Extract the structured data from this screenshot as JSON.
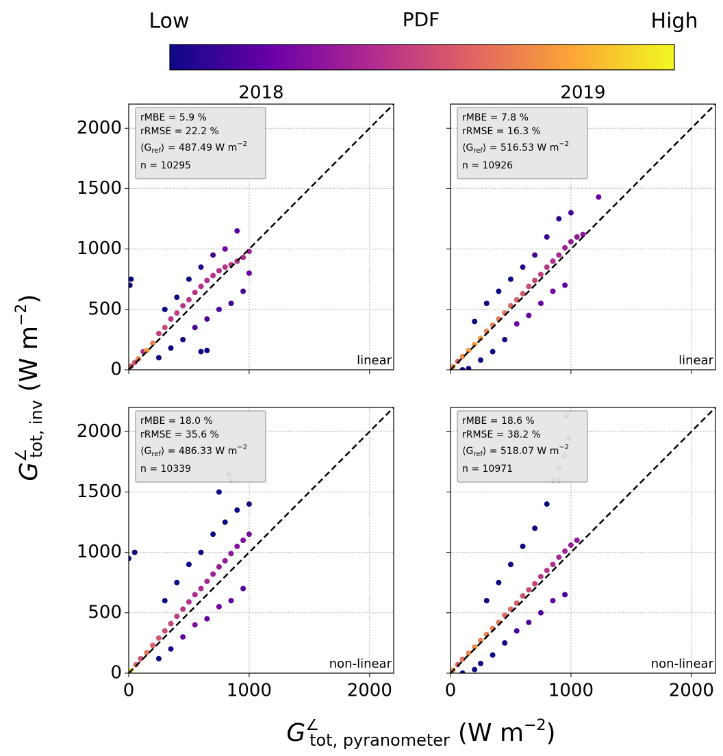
{
  "colorbar": {
    "title": "PDF",
    "low": "Low",
    "high": "High",
    "colors": [
      "#0d0887",
      "#6a00a8",
      "#b12a90",
      "#e16462",
      "#fca636",
      "#f0f921"
    ]
  },
  "ylabel": {
    "symbol": "G",
    "sup": "∠",
    "sub": "tot, inv",
    "unit": "(W m",
    "unit_sup": "−2",
    "unit_end": ")"
  },
  "xlabel": {
    "symbol": "G",
    "sup": "∠",
    "sub": "tot, pyranometer",
    "unit": "(W m",
    "unit_sup": "−2",
    "unit_end": ")"
  },
  "chart_data": [
    {
      "type": "scatter",
      "title": "2018",
      "mode": "linear",
      "stats": {
        "rmbe": "rMBE = 5.9 %",
        "rrmse": "rRMSE = 22.2 %",
        "mean": {
          "pre": "⟨G",
          "sub": "ref",
          "post": "⟩ = 487.49 W m",
          "sup": "−2"
        },
        "n": "n = 10295"
      },
      "x": [
        20,
        50,
        80,
        120,
        150,
        200,
        250,
        300,
        350,
        400,
        450,
        500,
        550,
        600,
        650,
        700,
        750,
        800,
        850,
        900,
        950,
        1000,
        300,
        400,
        500,
        600,
        700,
        800,
        900,
        250,
        350,
        450,
        550,
        650,
        750,
        850,
        950,
        1000,
        10,
        20,
        600,
        650
      ],
      "values": [
        30,
        60,
        90,
        150,
        160,
        220,
        300,
        350,
        420,
        470,
        530,
        580,
        640,
        690,
        740,
        780,
        820,
        850,
        870,
        900,
        930,
        980,
        500,
        600,
        750,
        850,
        950,
        1000,
        1150,
        100,
        180,
        250,
        350,
        420,
        500,
        550,
        650,
        800,
        700,
        750,
        150,
        160
      ],
      "xlim": [
        0,
        2200
      ],
      "ylim": [
        0,
        2200
      ],
      "xticks": [
        0,
        1000,
        2000
      ],
      "yticks": [
        0,
        500,
        1000,
        1500,
        2000
      ],
      "xtick_labels": false,
      "ytick_labels": true,
      "grid": true,
      "identity_line": true
    },
    {
      "type": "scatter",
      "title": "2019",
      "mode": "linear",
      "stats": {
        "rmbe": "rMBE = 7.8 %",
        "rrmse": "rRMSE = 16.3 %",
        "mean": {
          "pre": "⟨G",
          "sub": "ref",
          "post": "⟩ = 516.53 W m",
          "sup": "−2"
        },
        "n": "n = 10926"
      },
      "x": [
        20,
        60,
        100,
        150,
        200,
        250,
        300,
        350,
        400,
        450,
        500,
        550,
        600,
        650,
        700,
        750,
        800,
        850,
        900,
        950,
        1000,
        1050,
        1100,
        200,
        300,
        400,
        500,
        600,
        700,
        800,
        900,
        1000,
        250,
        350,
        450,
        550,
        650,
        750,
        850,
        950,
        1230,
        100,
        150
      ],
      "values": [
        25,
        70,
        110,
        160,
        210,
        260,
        320,
        370,
        420,
        470,
        530,
        580,
        630,
        690,
        740,
        790,
        850,
        900,
        950,
        1010,
        1060,
        1100,
        1120,
        400,
        550,
        650,
        750,
        850,
        950,
        1100,
        1250,
        1300,
        80,
        150,
        250,
        380,
        450,
        550,
        650,
        700,
        1430,
        0,
        10
      ],
      "xlim": [
        0,
        2200
      ],
      "ylim": [
        0,
        2200
      ],
      "xticks": [
        0,
        1000,
        2000
      ],
      "yticks": [
        0,
        500,
        1000,
        1500,
        2000
      ],
      "xtick_labels": false,
      "ytick_labels": false,
      "grid": true,
      "identity_line": true
    },
    {
      "type": "scatter",
      "mode": "non-linear",
      "stats": {
        "rmbe": "rMBE = 18.0 %",
        "rrmse": "rRMSE = 35.6 %",
        "mean": {
          "pre": "⟨G",
          "sub": "ref",
          "post": "⟩ = 486.33 W m",
          "sup": "−2"
        },
        "n": "n = 10339"
      },
      "x": [
        20,
        60,
        100,
        150,
        200,
        250,
        300,
        350,
        400,
        450,
        500,
        550,
        600,
        650,
        700,
        750,
        800,
        850,
        900,
        950,
        1000,
        300,
        400,
        500,
        600,
        700,
        800,
        900,
        1000,
        250,
        350,
        450,
        550,
        650,
        750,
        850,
        950,
        830,
        850,
        0,
        50,
        750
      ],
      "values": [
        20,
        70,
        120,
        170,
        230,
        290,
        350,
        410,
        470,
        530,
        590,
        650,
        700,
        760,
        820,
        880,
        930,
        990,
        1050,
        1100,
        1150,
        600,
        750,
        900,
        1000,
        1150,
        1250,
        1350,
        1400,
        120,
        200,
        300,
        400,
        450,
        550,
        600,
        700,
        1650,
        1600,
        950,
        1000,
        1500
      ],
      "xlim": [
        0,
        2200
      ],
      "ylim": [
        0,
        2200
      ],
      "xticks": [
        0,
        1000,
        2000
      ],
      "yticks": [
        0,
        500,
        1000,
        1500,
        2000
      ],
      "xtick_labels": true,
      "ytick_labels": true,
      "grid": true,
      "identity_line": true
    },
    {
      "type": "scatter",
      "mode": "non-linear",
      "stats": {
        "rmbe": "rMBE = 18.6 %",
        "rrmse": "rRMSE = 38.2 %",
        "mean": {
          "pre": "⟨G",
          "sub": "ref",
          "post": "⟩ = 518.07 W m",
          "sup": "−2"
        },
        "n": "n = 10971"
      },
      "x": [
        20,
        60,
        100,
        150,
        200,
        250,
        300,
        350,
        400,
        450,
        500,
        550,
        600,
        650,
        700,
        750,
        800,
        850,
        900,
        950,
        1000,
        1050,
        300,
        400,
        500,
        600,
        700,
        800,
        900,
        950,
        250,
        350,
        450,
        550,
        650,
        750,
        850,
        950,
        960,
        980,
        900,
        850,
        100,
        200
      ],
      "values": [
        25,
        70,
        115,
        165,
        215,
        270,
        320,
        370,
        420,
        480,
        530,
        580,
        640,
        690,
        740,
        800,
        850,
        900,
        960,
        1010,
        1060,
        1100,
        600,
        750,
        900,
        1050,
        1200,
        1400,
        1600,
        1800,
        80,
        150,
        250,
        350,
        420,
        500,
        600,
        650,
        2130,
        1950,
        1700,
        1600,
        0,
        30
      ],
      "xlim": [
        0,
        2200
      ],
      "ylim": [
        0,
        2200
      ],
      "xticks": [
        0,
        1000,
        2000
      ],
      "yticks": [
        0,
        500,
        1000,
        1500,
        2000
      ],
      "xtick_labels": true,
      "ytick_labels": false,
      "grid": true,
      "identity_line": true
    }
  ]
}
